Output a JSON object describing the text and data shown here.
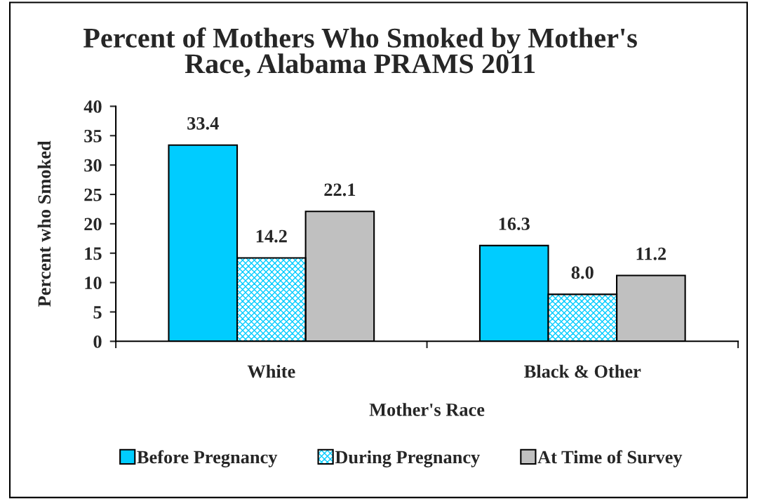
{
  "chart_data": {
    "type": "bar",
    "title": "Percent of Mothers Who Smoked by Mother's\nRace, Alabama PRAMS 2011",
    "xlabel": "Mother's Race",
    "ylabel": "Percent who Smoked",
    "categories": [
      "White",
      "Black & Other"
    ],
    "series": [
      {
        "name": "Before Pregnancy",
        "color": "#00ccff",
        "values": [
          33.4,
          16.3
        ],
        "value_labels": [
          "33.4",
          "16.3"
        ]
      },
      {
        "name": "During Pregnancy",
        "color": "#00ccff",
        "values": [
          14.2,
          8.0
        ],
        "value_labels": [
          "14.2",
          "8.0"
        ]
      },
      {
        "name": "At Time of Survey",
        "color": "#c0c0c0",
        "values": [
          22.1,
          11.2
        ],
        "value_labels": [
          "22.1",
          "11.2"
        ]
      }
    ],
    "ylim": [
      0,
      40
    ],
    "yticks": [
      0,
      5,
      10,
      15,
      20,
      25,
      30,
      35,
      40
    ],
    "legend": "bottom"
  }
}
